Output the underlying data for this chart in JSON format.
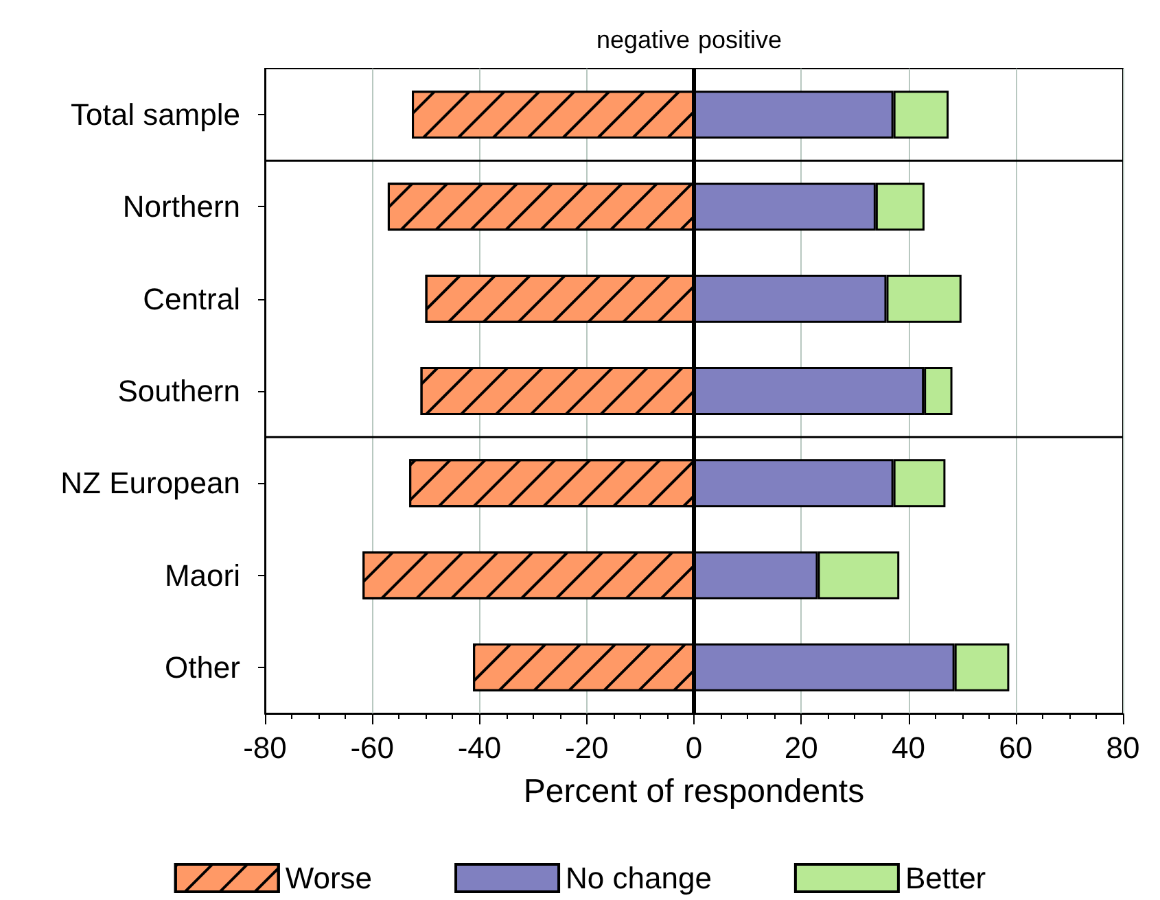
{
  "chart_data": {
    "type": "bar",
    "orientation": "horizontal",
    "stacked": true,
    "categories": [
      "Total sample",
      "Northern",
      "Central",
      "Southern",
      "NZ European",
      "Maori",
      "Other"
    ],
    "series": [
      {
        "name": "Worse",
        "color": "#ff9966",
        "values": [
          -52.6,
          -57.1,
          -50.1,
          -51.0,
          -53.1,
          -61.8,
          -41.2
        ]
      },
      {
        "name": "No change",
        "color": "#8080c0",
        "values": [
          37.2,
          33.9,
          35.9,
          42.9,
          37.2,
          23.1,
          48.6
        ]
      },
      {
        "name": "Better",
        "color": "#b8e994",
        "values": [
          10.3,
          9.1,
          14.0,
          5.3,
          9.7,
          15.2,
          10.2
        ]
      }
    ],
    "xlim": [
      -80,
      80
    ],
    "xticks": [
      -80,
      -60,
      -40,
      -20,
      0,
      20,
      40,
      60,
      80
    ],
    "xlabel": "Percent of respondents",
    "ref_lines": [
      {
        "axis": "x",
        "value": 0,
        "color": "#000000"
      }
    ],
    "annotations": [
      "negative",
      "positive"
    ],
    "grid": "x",
    "legend": "bottom"
  }
}
